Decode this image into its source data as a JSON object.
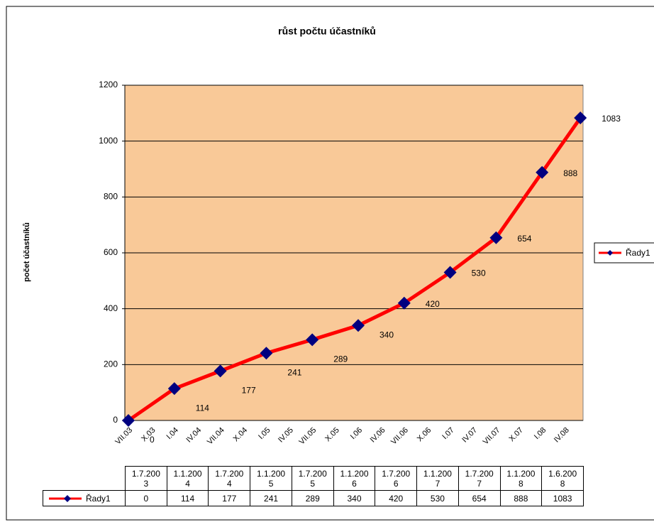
{
  "chart_data": {
    "type": "line",
    "title": "růst počtu účastníků",
    "y_label": "počet účastníků",
    "categories": [
      "VII.03",
      "X.03",
      "I.04",
      "IV.04",
      "VII.04",
      "X.04",
      "I.05",
      "IV.05",
      "VII.05",
      "X.05",
      "I.06",
      "IV.06",
      "VII.06",
      "X.06",
      "I.07",
      "IV.07",
      "VII.07",
      "X.07",
      "I.08",
      "IV.08"
    ],
    "x": [
      "1.7.2003",
      "1.1.2004",
      "1.7.2004",
      "1.1.2005",
      "1.7.2005",
      "1.1.2006",
      "1.7.2006",
      "1.1.2007",
      "1.7.2007",
      "1.1.2008",
      "1.6.2008"
    ],
    "series": [
      {
        "name": "Řady1",
        "color": "#ff0000",
        "marker_color": "#000080",
        "values": [
          0,
          114,
          177,
          241,
          289,
          340,
          420,
          530,
          654,
          888,
          1083
        ]
      }
    ],
    "ylim": [
      0,
      1200
    ],
    "yticks": [
      0,
      200,
      400,
      600,
      800,
      1000,
      1200
    ],
    "grid": true,
    "legend": "right",
    "plot_background": "#f9c998"
  }
}
